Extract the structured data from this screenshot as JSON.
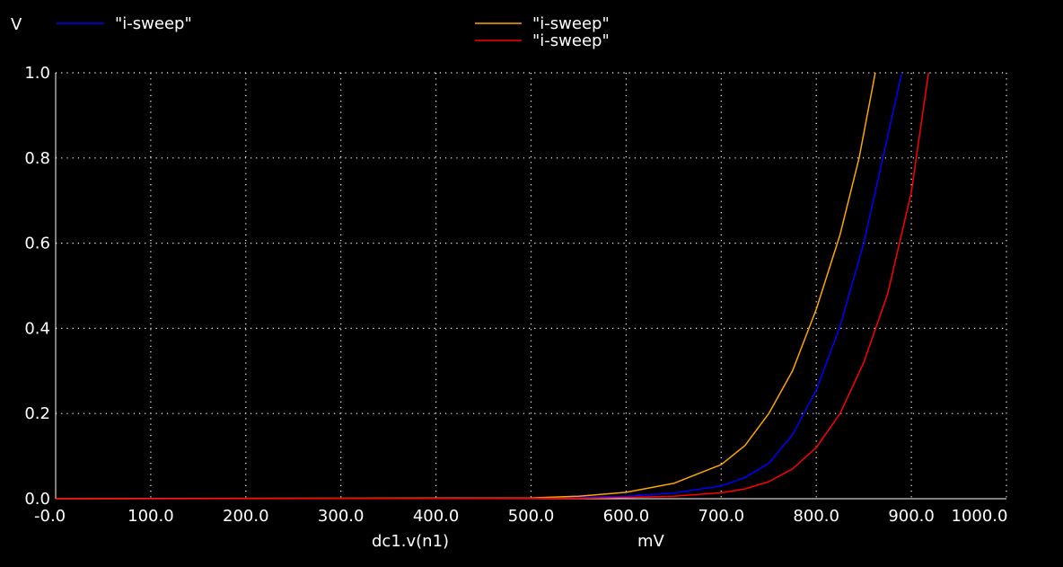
{
  "chart_data": {
    "type": "line",
    "title": "",
    "ylabel": "V",
    "xlabel": "dc1.v(n1)",
    "xunit": "mV",
    "xlim": [
      0,
      1000
    ],
    "ylim": [
      0,
      1.0
    ],
    "x_ticks": [
      "-0.0",
      "100.0",
      "200.0",
      "300.0",
      "400.0",
      "500.0",
      "600.0",
      "700.0",
      "800.0",
      "900.0",
      "1000.0"
    ],
    "y_ticks": [
      "0.0",
      "0.2",
      "0.4",
      "0.6",
      "0.8",
      "1.0"
    ],
    "grid": true,
    "legend_placement": "top",
    "series": [
      {
        "name": "\"i-sweep\"",
        "color": "#0000ff",
        "x": [
          0,
          500,
          550,
          600,
          650,
          700,
          725,
          750,
          775,
          800,
          825,
          850,
          870,
          890
        ],
        "y": [
          0,
          0.001,
          0.003,
          0.006,
          0.013,
          0.03,
          0.05,
          0.083,
          0.15,
          0.255,
          0.405,
          0.6,
          0.8,
          1.0
        ]
      },
      {
        "name": "\"i-sweep\"",
        "color": "#ffa500",
        "x": [
          0,
          500,
          550,
          600,
          650,
          700,
          725,
          750,
          775,
          800,
          825,
          845,
          862
        ],
        "y": [
          0,
          0.002,
          0.006,
          0.015,
          0.036,
          0.08,
          0.125,
          0.2,
          0.3,
          0.445,
          0.62,
          0.8,
          1.0
        ]
      },
      {
        "name": "\"i-sweep\"",
        "color": "#ff0000",
        "x": [
          0,
          550,
          600,
          650,
          700,
          725,
          750,
          775,
          800,
          825,
          850,
          875,
          900,
          918
        ],
        "y": [
          0,
          0.001,
          0.003,
          0.006,
          0.014,
          0.023,
          0.04,
          0.07,
          0.12,
          0.2,
          0.32,
          0.48,
          0.72,
          1.0
        ]
      }
    ]
  }
}
